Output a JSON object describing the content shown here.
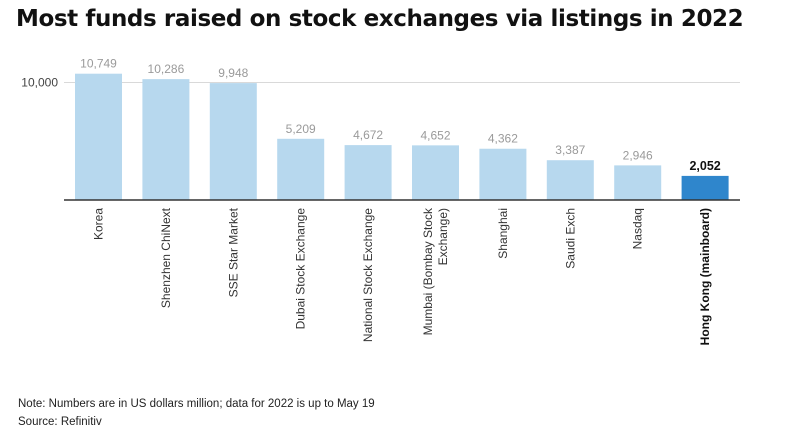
{
  "title": "Most funds raised on stock exchanges via listings in 2022",
  "note": "Note: Numbers are in US dollars million; data for 2022 is up to May 19",
  "source": "Source: Refinitiv",
  "colors": {
    "bar": "#b7d8ee",
    "highlight": "#2f86cc",
    "axis": "#333333",
    "grid": "#d9d9d9",
    "label": "#9a9a9a"
  },
  "chart_data": {
    "type": "bar",
    "categories": [
      "Korea",
      "Shenzhen ChiNext",
      "SSE Star Market",
      "Dubai Stock Exchange",
      "National Stock Exchange",
      "Mumbai (Bombay Stock Exchange)",
      "Shanghai",
      "Saudi Exch",
      "Nasdaq",
      "Hong Kong (mainboard)"
    ],
    "category_lines": [
      [
        "Korea"
      ],
      [
        "Shenzhen ChiNext"
      ],
      [
        "SSE Star Market"
      ],
      [
        "Dubai Stock Exchange"
      ],
      [
        "National Stock Exchange"
      ],
      [
        "Mumbai (Bombay Stock",
        "Exchange)"
      ],
      [
        "Shanghai"
      ],
      [
        "Saudi Exch"
      ],
      [
        "Nasdaq"
      ],
      [
        "Hong Kong (mainboard)"
      ]
    ],
    "values": [
      10749,
      10286,
      9948,
      5209,
      4672,
      4652,
      4362,
      3387,
      2946,
      2052
    ],
    "value_labels": [
      "10,749",
      "10,286",
      "9,948",
      "5,209",
      "4,672",
      "4,652",
      "4,362",
      "3,387",
      "2,946",
      "2,052"
    ],
    "highlight_index": 9,
    "yticks": [
      10000
    ],
    "ytick_labels": [
      "10,000"
    ],
    "ylim": [
      0,
      11500
    ],
    "grid": true,
    "xlabel": "",
    "ylabel": ""
  }
}
